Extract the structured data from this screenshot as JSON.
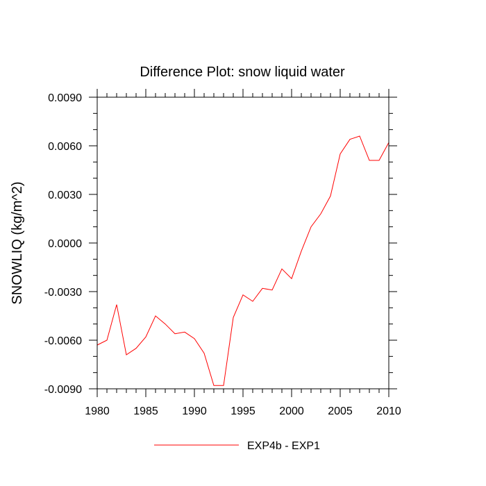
{
  "chart_data": {
    "type": "line",
    "title": "Difference Plot: snow liquid water",
    "xlabel": "",
    "ylabel": "SNOWLIQ  (kg/m^2)",
    "xlim": [
      1980,
      2010
    ],
    "ylim": [
      -0.009,
      0.009
    ],
    "xticks": [
      1980,
      1985,
      1990,
      1995,
      2000,
      2005,
      2010
    ],
    "xtick_labels": [
      "1980",
      "1985",
      "1990",
      "1995",
      "2000",
      "2005",
      "2010"
    ],
    "yticks": [
      -0.009,
      -0.006,
      -0.003,
      0.0,
      0.003,
      0.006,
      0.009
    ],
    "ytick_labels": [
      "-0.0090",
      "-0.0060",
      "-0.0030",
      "0.0000",
      "0.0030",
      "0.0060",
      "0.0090"
    ],
    "grid": false,
    "legend_position": "bottom-center",
    "series": [
      {
        "name": "EXP4b - EXP1",
        "color": "#ff0000",
        "x": [
          1980,
          1981,
          1982,
          1983,
          1984,
          1985,
          1986,
          1987,
          1988,
          1989,
          1990,
          1991,
          1992,
          1993,
          1994,
          1995,
          1996,
          1997,
          1998,
          1999,
          2000,
          2001,
          2002,
          2003,
          2004,
          2005,
          2006,
          2007,
          2008,
          2009,
          2010
        ],
        "values": [
          -0.0063,
          -0.006,
          -0.0038,
          -0.0069,
          -0.0065,
          -0.0058,
          -0.0045,
          -0.005,
          -0.0056,
          -0.0055,
          -0.0059,
          -0.0068,
          -0.0088,
          -0.0088,
          -0.0046,
          -0.0032,
          -0.0036,
          -0.0028,
          -0.0029,
          -0.0016,
          -0.0022,
          -0.0005,
          0.001,
          0.0018,
          0.0029,
          0.0055,
          0.0064,
          0.0066,
          0.0051,
          0.0051,
          0.0062
        ]
      }
    ]
  }
}
